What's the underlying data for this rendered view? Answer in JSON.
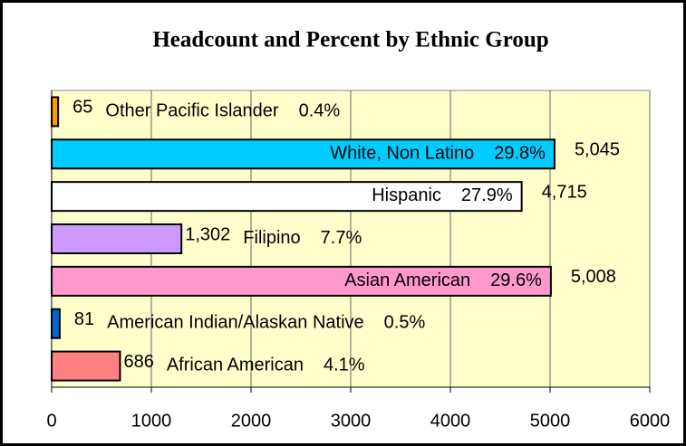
{
  "chart_data": {
    "type": "hbar",
    "title": "Headcount and Percent by Ethnic Group",
    "categories": [
      "Other Pacific Islander",
      "White, Non Latino",
      "Hispanic",
      "Filipino",
      "Asian American",
      "American Indian/Alaskan Native",
      "African American"
    ],
    "values": [
      65,
      5045,
      4715,
      1302,
      5008,
      81,
      686
    ],
    "value_labels": [
      "65",
      "5,045",
      "4,715",
      "1,302",
      "5,008",
      "81",
      "686"
    ],
    "percents": [
      0.4,
      29.8,
      27.9,
      7.7,
      29.6,
      0.5,
      4.1
    ],
    "percent_labels": [
      "0.4%",
      "29.8%",
      "27.9%",
      "7.7%",
      "29.6%",
      "0.5%",
      "4.1%"
    ],
    "colors": [
      "#ff9900",
      "#00ccff",
      "#ffffff",
      "#cc99ff",
      "#ff99cc",
      "#0066cc",
      "#ff8080"
    ],
    "xlim": [
      0,
      6000
    ],
    "xticks": [
      0,
      1000,
      2000,
      3000,
      4000,
      5000,
      6000
    ],
    "grid": true
  }
}
